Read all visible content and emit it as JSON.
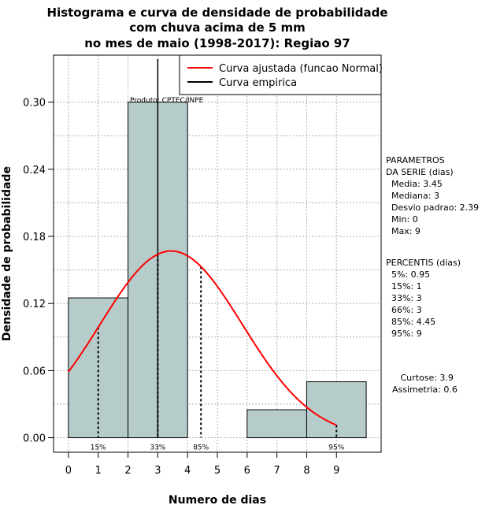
{
  "chart_data": {
    "type": "bar",
    "title_lines": [
      "Histograma e curva de densidade de probabilidade",
      "com chuva acima de 5 mm",
      "no mes de maio (1998-2017): Regiao 97"
    ],
    "xlabel": "Numero de dias",
    "ylabel": "Densidade de probabilidade",
    "xlim": [
      -0.5,
      10.5
    ],
    "ylim": [
      -0.013,
      0.342
    ],
    "x_ticks": [
      0,
      1,
      2,
      3,
      4,
      5,
      6,
      7,
      8,
      9
    ],
    "y_ticks": [
      0.0,
      0.06,
      0.12,
      0.18,
      0.24,
      0.3
    ],
    "y_tick_labels": [
      "0.00",
      "0.06",
      "0.12",
      "0.18",
      "0.24",
      "0.30"
    ],
    "grid": true,
    "bins": [
      {
        "from": 0,
        "to": 2,
        "density": 0.125
      },
      {
        "from": 2,
        "to": 4,
        "density": 0.3
      },
      {
        "from": 4,
        "to": 6,
        "density": 0.0
      },
      {
        "from": 6,
        "to": 8,
        "density": 0.025
      },
      {
        "from": 8,
        "to": 10,
        "density": 0.05
      }
    ],
    "bar_color": "#b5cccb",
    "normal_fit": {
      "mean": 3.45,
      "sd": 2.39,
      "x_from": 0,
      "x_to": 9,
      "color": "#ff0000"
    },
    "median_line": {
      "x": 3
    },
    "percentile_lines": [
      {
        "x": 1,
        "label": "15%"
      },
      {
        "x": 3,
        "label": "33%"
      },
      {
        "x": 4.45,
        "label": "85%"
      },
      {
        "x": 9,
        "label": "95%"
      }
    ],
    "legend": {
      "entries": [
        {
          "label": "Curva ajustada (funcao Normal)",
          "color": "#ff0000"
        },
        {
          "label": "Curva empirica",
          "color": "#000000"
        }
      ],
      "placement": "top-right"
    },
    "product_label": "Produto: CPTEC/INPE"
  },
  "side_panel": {
    "params_lines": [
      "PARAMETROS",
      "DA SERIE (dias)",
      "  Media: 3.45",
      "  Mediana: 3",
      "  Desvio padrao: 2.39",
      "  Min: 0",
      "  Max: 9"
    ],
    "percentis_lines": [
      "PERCENTIS (dias)",
      "  5%: 0.95",
      "  15%: 1",
      "  33%: 3",
      "  66%: 3",
      "  85%: 4.45",
      "  95%: 9"
    ],
    "shape_lines": [
      "   Curtose: 3.9",
      "Assimetria: 0.6"
    ]
  }
}
